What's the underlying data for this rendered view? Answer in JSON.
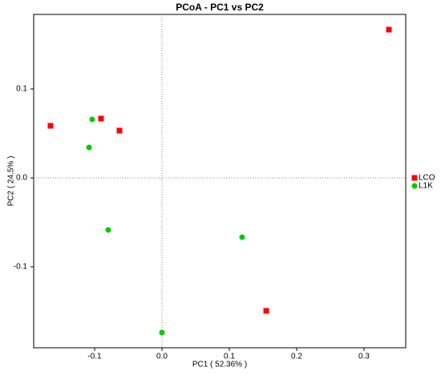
{
  "chart_data": {
    "type": "scatter",
    "title": "PCoA - PC1 vs PC2",
    "x_label": "PC1 ( 52.36% )",
    "y_label": "PC2 ( 24.5% )",
    "xlim": [
      -0.1905,
      0.3619
    ],
    "ylim": [
      -0.191,
      0.1838
    ],
    "xticks": [
      -0.1,
      {
        "value": 0,
        "label": "0.0"
      },
      0.1,
      0.2,
      0.3
    ],
    "yticks": [
      -0.1,
      {
        "value": 0,
        "label": "0.0"
      },
      0.1
    ],
    "legend_position": "right",
    "series": [
      {
        "name": "LCO",
        "color": "#ff0000",
        "marker": "square",
        "x": [
          -0.1655,
          -0.0905,
          -0.0631,
          0.3369,
          0.1548
        ],
        "values": [
          0.0586,
          0.0667,
          0.0532,
          0.1667,
          -0.1495
        ]
      },
      {
        "name": "L1K",
        "color": "#00cc00",
        "marker": "circle",
        "x": [
          -0.1036,
          -0.1083,
          -0.0798,
          0.119,
          0.0
        ],
        "values": [
          0.0658,
          0.0342,
          -0.0586,
          -0.0667,
          -0.1739
        ]
      }
    ]
  }
}
